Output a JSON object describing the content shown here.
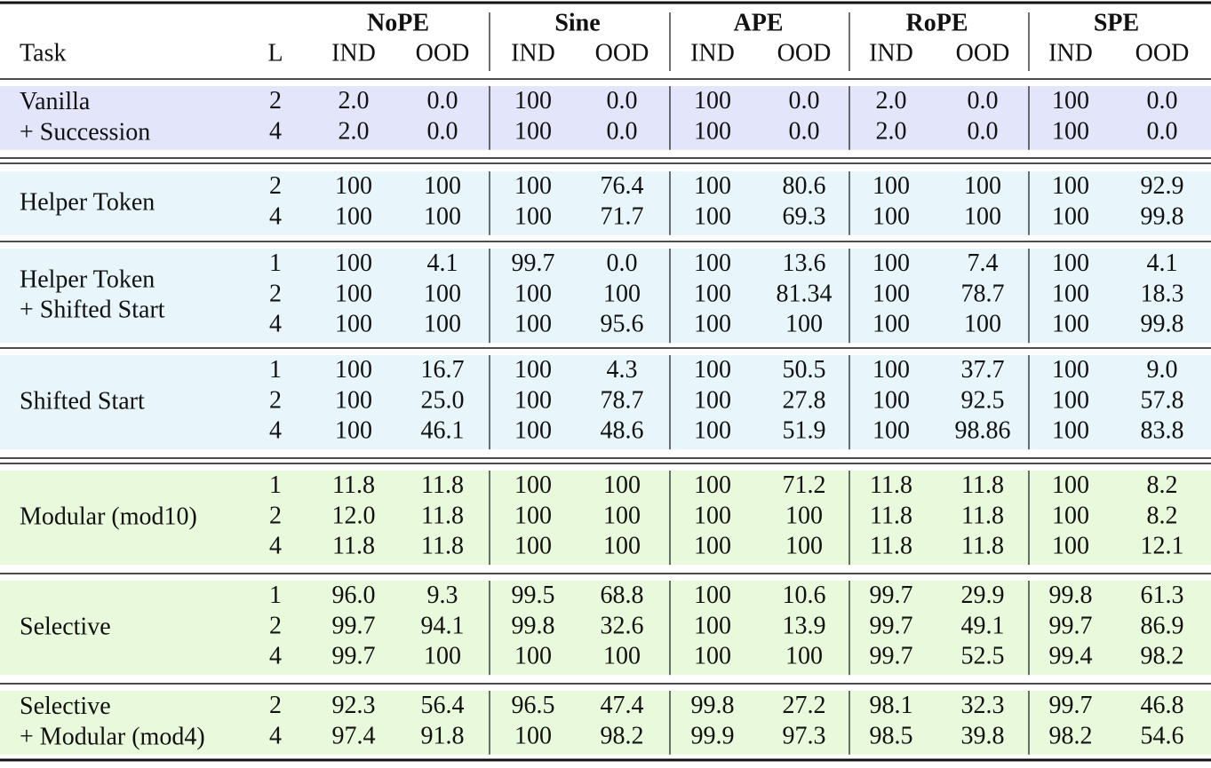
{
  "table": {
    "header": {
      "task": "Task",
      "l": "L",
      "groups": [
        "NoPE",
        "Sine",
        "APE",
        "RoPE",
        "SPE"
      ],
      "subheaders": [
        "IND",
        "OOD",
        "IND",
        "OOD",
        "IND",
        "OOD",
        "IND",
        "OOD",
        "IND",
        "OOD"
      ]
    },
    "sections": [
      {
        "task": [
          "Vanilla",
          "+ Succession"
        ],
        "background": "#e3e6fa",
        "rows": [
          {
            "l": "2",
            "values": [
              "2.0",
              "0.0",
              "100",
              "0.0",
              "100",
              "0.0",
              "2.0",
              "0.0",
              "100",
              "0.0"
            ]
          },
          {
            "l": "4",
            "values": [
              "2.0",
              "0.0",
              "100",
              "0.0",
              "100",
              "0.0",
              "2.0",
              "0.0",
              "100",
              "0.0"
            ]
          }
        ]
      },
      {
        "task": [
          "Helper Token"
        ],
        "background": "#e8f6fb",
        "rows": [
          {
            "l": "2",
            "values": [
              "100",
              "100",
              "100",
              "76.4",
              "100",
              "80.6",
              "100",
              "100",
              "100",
              "92.9"
            ]
          },
          {
            "l": "4",
            "values": [
              "100",
              "100",
              "100",
              "71.7",
              "100",
              "69.3",
              "100",
              "100",
              "100",
              "99.8"
            ]
          }
        ]
      },
      {
        "task": [
          "Helper Token",
          "+ Shifted Start"
        ],
        "background": "#e8f6fb",
        "rows": [
          {
            "l": "1",
            "values": [
              "100",
              "4.1",
              "99.7",
              "0.0",
              "100",
              "13.6",
              "100",
              "7.4",
              "100",
              "4.1"
            ]
          },
          {
            "l": "2",
            "values": [
              "100",
              "100",
              "100",
              "100",
              "100",
              "81.34",
              "100",
              "78.7",
              "100",
              "18.3"
            ]
          },
          {
            "l": "4",
            "values": [
              "100",
              "100",
              "100",
              "95.6",
              "100",
              "100",
              "100",
              "100",
              "100",
              "99.8"
            ]
          }
        ]
      },
      {
        "task": [
          "Shifted Start"
        ],
        "background": "#e8f6fb",
        "rows": [
          {
            "l": "1",
            "values": [
              "100",
              "16.7",
              "100",
              "4.3",
              "100",
              "50.5",
              "100",
              "37.7",
              "100",
              "9.0"
            ]
          },
          {
            "l": "2",
            "values": [
              "100",
              "25.0",
              "100",
              "78.7",
              "100",
              "27.8",
              "100",
              "92.5",
              "100",
              "57.8"
            ]
          },
          {
            "l": "4",
            "values": [
              "100",
              "46.1",
              "100",
              "48.6",
              "100",
              "51.9",
              "100",
              "98.86",
              "100",
              "83.8"
            ]
          }
        ]
      },
      {
        "task": [
          "Modular (mod10)"
        ],
        "background": "#e8f9dc",
        "rows": [
          {
            "l": "1",
            "values": [
              "11.8",
              "11.8",
              "100",
              "100",
              "100",
              "71.2",
              "11.8",
              "11.8",
              "100",
              "8.2"
            ]
          },
          {
            "l": "2",
            "values": [
              "12.0",
              "11.8",
              "100",
              "100",
              "100",
              "100",
              "11.8",
              "11.8",
              "100",
              "8.2"
            ]
          },
          {
            "l": "4",
            "values": [
              "11.8",
              "11.8",
              "100",
              "100",
              "100",
              "100",
              "11.8",
              "11.8",
              "100",
              "12.1"
            ]
          }
        ]
      },
      {
        "task": [
          "Selective"
        ],
        "background": "#e8f9dc",
        "rows": [
          {
            "l": "1",
            "values": [
              "96.0",
              "9.3",
              "99.5",
              "68.8",
              "100",
              "10.6",
              "99.7",
              "29.9",
              "99.8",
              "61.3"
            ]
          },
          {
            "l": "2",
            "values": [
              "99.7",
              "94.1",
              "99.8",
              "32.6",
              "100",
              "13.9",
              "99.7",
              "49.1",
              "99.7",
              "86.9"
            ]
          },
          {
            "l": "4",
            "values": [
              "99.7",
              "100",
              "100",
              "100",
              "100",
              "100",
              "99.7",
              "52.5",
              "99.4",
              "98.2"
            ]
          }
        ]
      },
      {
        "task": [
          "Selective",
          "+ Modular (mod4)"
        ],
        "background": "#e8f9dc",
        "rows": [
          {
            "l": "2",
            "values": [
              "92.3",
              "56.4",
              "96.5",
              "47.4",
              "99.8",
              "27.2",
              "98.1",
              "32.3",
              "99.7",
              "46.8"
            ]
          },
          {
            "l": "4",
            "values": [
              "97.4",
              "91.8",
              "100",
              "98.2",
              "99.9",
              "97.3",
              "98.5",
              "39.8",
              "98.2",
              "54.6"
            ]
          }
        ]
      }
    ]
  }
}
